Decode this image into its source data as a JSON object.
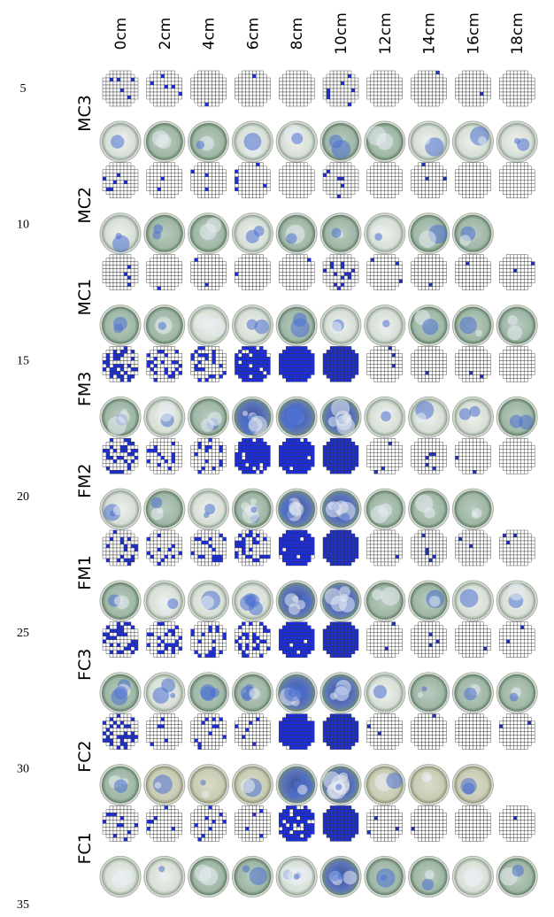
{
  "columns": [
    "0cm",
    "2cm",
    "4cm",
    "6cm",
    "8cm",
    "10cm",
    "12cm",
    "14cm",
    "16cm",
    "18cm"
  ],
  "rows": [
    "MC3",
    "MC2",
    "MC1",
    "FM3",
    "FM2",
    "FM1",
    "FC3",
    "FC2",
    "FC1"
  ],
  "line_numbers": [
    5,
    10,
    15,
    20,
    25,
    30,
    35
  ]
}
